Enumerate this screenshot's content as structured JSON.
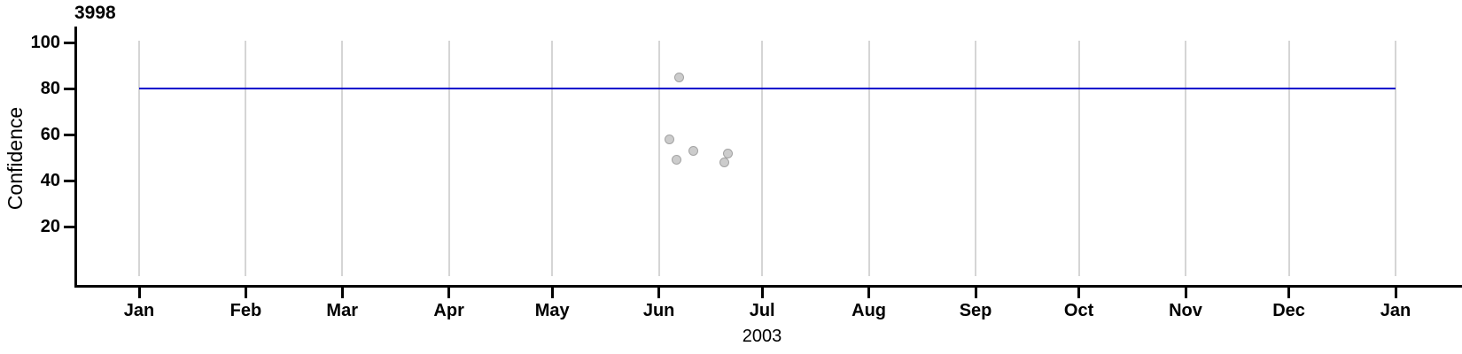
{
  "chart_data": {
    "type": "scatter",
    "title": "3998",
    "ylabel": "Confidence",
    "xlabel": "2003",
    "x_tick_labels": [
      "Jan",
      "Feb",
      "Mar",
      "Apr",
      "May",
      "Jun",
      "Jul",
      "Aug",
      "Sep",
      "Oct",
      "Nov",
      "Dec",
      "Jan"
    ],
    "y_ticks": [
      20,
      40,
      60,
      80,
      100
    ],
    "ylim": [
      0,
      105
    ],
    "x_range": [
      "2003-01-01",
      "2004-01-01"
    ],
    "grid": "vertical-monthly",
    "legend": "none",
    "points": [
      {
        "date": "2003-06-04",
        "y": 58
      },
      {
        "date": "2003-06-06",
        "y": 49
      },
      {
        "date": "2003-06-07",
        "y": 85
      },
      {
        "date": "2003-06-11",
        "y": 53
      },
      {
        "date": "2003-06-20",
        "y": 48
      },
      {
        "date": "2003-06-21",
        "y": 52
      }
    ],
    "reference_line": {
      "y": 80,
      "color": "#0000CC"
    },
    "colors": {
      "point_fill": "#CCCCCC",
      "point_stroke": "#A3A3A3",
      "gridline": "#D5D5D5",
      "axis": "#000000",
      "text": "#000000"
    }
  }
}
